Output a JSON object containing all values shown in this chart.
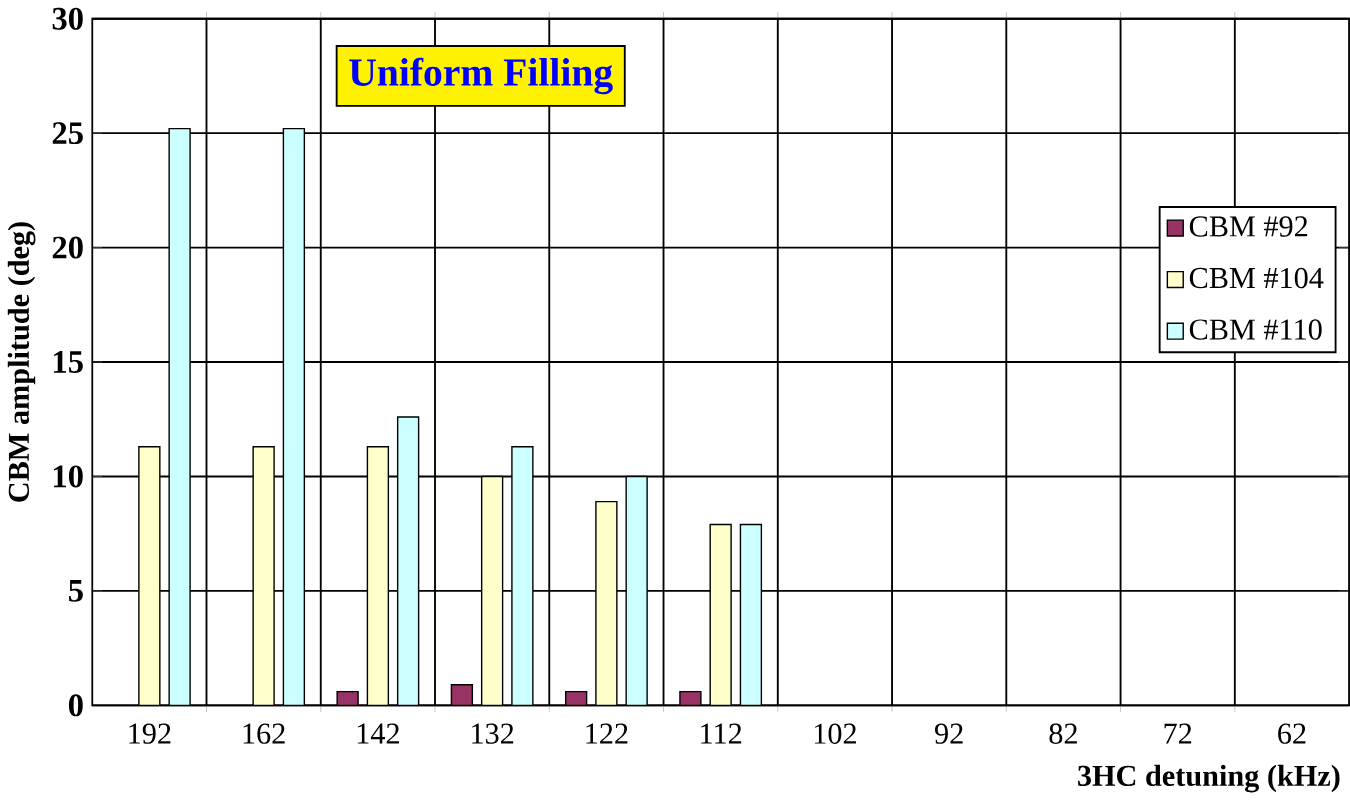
{
  "chart_data": {
    "type": "bar",
    "title": "Uniform Filling",
    "xlabel": "3HC detuning (kHz)",
    "ylabel": "CBM amplitude (deg)",
    "categories": [
      "192",
      "162",
      "142",
      "132",
      "122",
      "112",
      "102",
      "92",
      "82",
      "72",
      "62"
    ],
    "series": [
      {
        "name": "CBM #92",
        "color": "#993366",
        "values": [
          null,
          null,
          0.6,
          0.9,
          0.6,
          0.6,
          null,
          null,
          null,
          null,
          null
        ]
      },
      {
        "name": "CBM #104",
        "color": "#ffffcc",
        "values": [
          11.3,
          11.3,
          11.3,
          10.0,
          8.9,
          7.9,
          null,
          null,
          null,
          null,
          null
        ]
      },
      {
        "name": "CBM #110",
        "color": "#ccffff",
        "values": [
          25.2,
          25.2,
          12.6,
          11.3,
          10.0,
          7.9,
          null,
          null,
          null,
          null,
          null
        ]
      }
    ],
    "ylim": [
      0,
      30
    ],
    "yticks": [
      0,
      5,
      10,
      15,
      20,
      25,
      30
    ],
    "grid": true,
    "legend": "right"
  }
}
